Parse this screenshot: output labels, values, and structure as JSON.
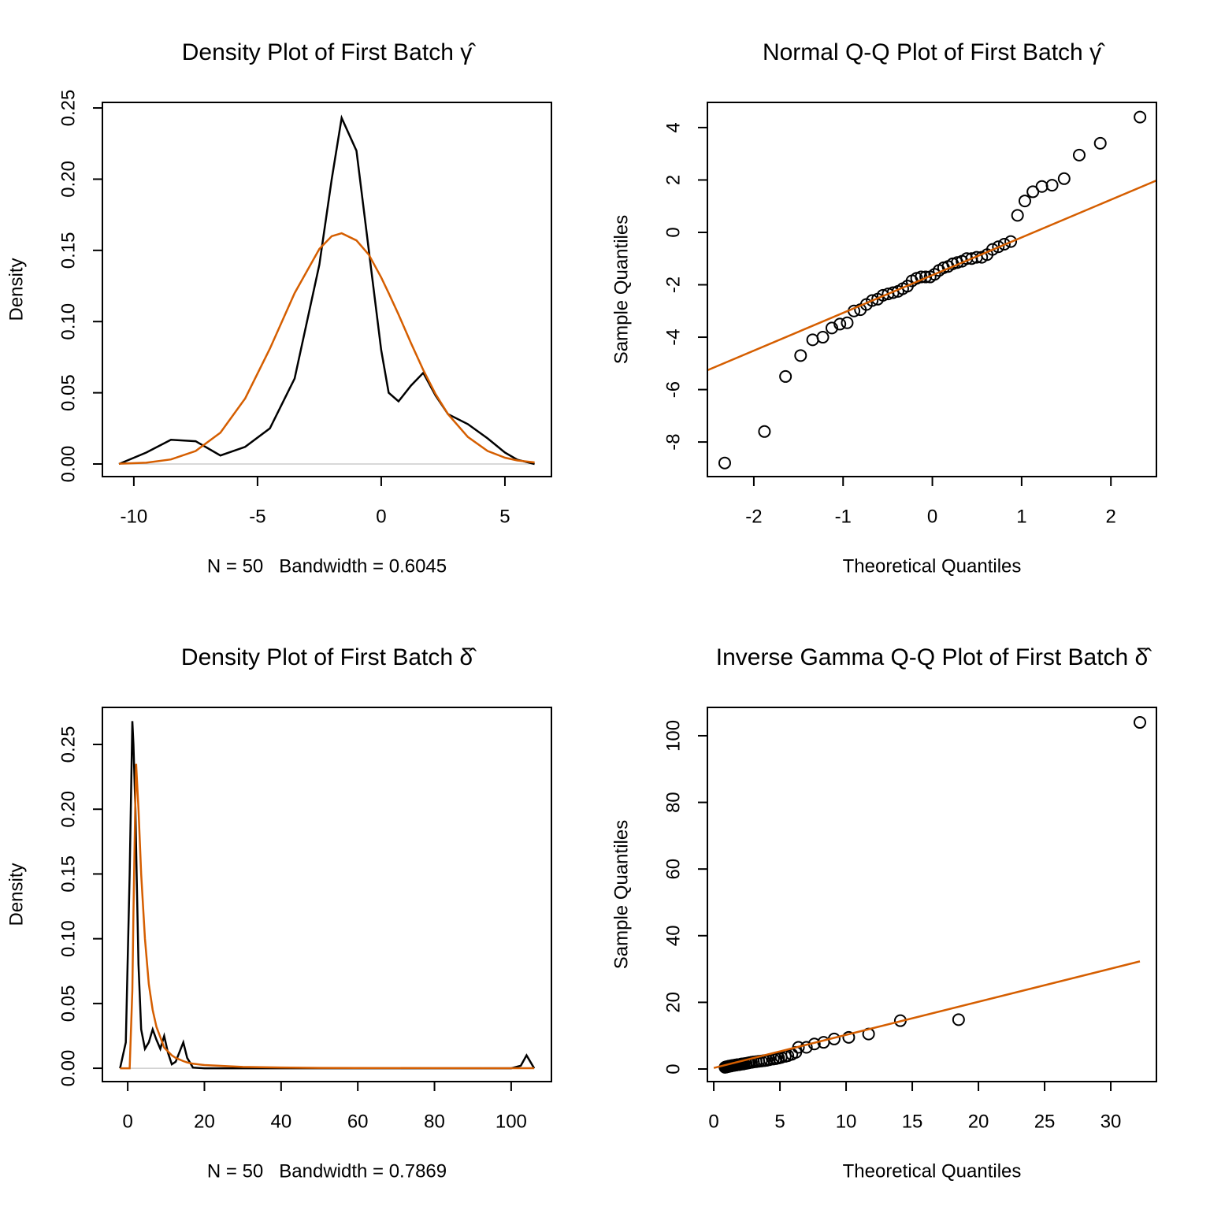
{
  "chart_data": [
    {
      "type": "line",
      "title": "Density Plot of First Batch γ̂",
      "xlabel": "N = 50   Bandwidth = 0.6045",
      "ylabel": "Density",
      "x": [
        -10.6,
        -9.5,
        -8.5,
        -7.5,
        -6.5,
        -5.5,
        -4.5,
        -3.5,
        -2.5,
        -2,
        -1.6,
        -1,
        -0.5,
        0,
        0.3,
        0.7,
        1.2,
        1.7,
        2.2,
        2.7,
        3.5,
        4.3,
        5,
        5.5,
        6.2
      ],
      "series": [
        {
          "color": "#000000",
          "values": [
            0,
            0.008,
            0.017,
            0.016,
            0.006,
            0.012,
            0.025,
            0.06,
            0.14,
            0.2,
            0.243,
            0.22,
            0.15,
            0.08,
            0.05,
            0.044,
            0.055,
            0.064,
            0.048,
            0.035,
            0.028,
            0.018,
            0.008,
            0.003,
            0
          ]
        },
        {
          "color": "#d55e00",
          "values": [
            0.0002,
            0.0009,
            0.0032,
            0.0091,
            0.022,
            0.046,
            0.081,
            0.12,
            0.151,
            0.16,
            0.162,
            0.157,
            0.147,
            0.131,
            0.12,
            0.105,
            0.085,
            0.066,
            0.049,
            0.035,
            0.019,
            0.0091,
            0.0044,
            0.0025,
            0.0011
          ]
        }
      ],
      "xlim": [
        -11.27,
        6.88
      ],
      "ylim": [
        -0.00885,
        0.2539
      ],
      "xticks": [
        -10,
        -5,
        0,
        5
      ],
      "yticks": [
        {
          "value": 0,
          "label": "0.00"
        },
        0.05,
        {
          "value": 0.1,
          "label": "0.10"
        },
        0.15,
        {
          "value": 0.2,
          "label": "0.20"
        },
        0.25
      ]
    },
    {
      "type": "scatter",
      "title": "Normal Q-Q Plot of First Batch γ̂",
      "xlabel": "Theoretical Quantiles",
      "ylabel": "Sample Quantiles",
      "x": [
        -2.326,
        -1.881,
        -1.645,
        -1.476,
        -1.341,
        -1.227,
        -1.126,
        -1.036,
        -0.954,
        -0.878,
        -0.806,
        -0.739,
        -0.674,
        -0.613,
        -0.553,
        -0.496,
        -0.44,
        -0.385,
        -0.332,
        -0.279,
        -0.228,
        -0.176,
        -0.126,
        -0.075,
        -0.025,
        0.025,
        0.075,
        0.126,
        0.176,
        0.228,
        0.279,
        0.332,
        0.385,
        0.44,
        0.496,
        0.553,
        0.613,
        0.674,
        0.739,
        0.806,
        0.878,
        0.954,
        1.036,
        1.126,
        1.227,
        1.341,
        1.476,
        1.645,
        1.881,
        2.326
      ],
      "values": [
        -8.8,
        -7.6,
        -5.5,
        -4.7,
        -4.1,
        -4.0,
        -3.65,
        -3.5,
        -3.45,
        -3.0,
        -2.95,
        -2.75,
        -2.6,
        -2.55,
        -2.4,
        -2.35,
        -2.3,
        -2.25,
        -2.15,
        -2.05,
        -1.85,
        -1.75,
        -1.7,
        -1.7,
        -1.7,
        -1.6,
        -1.45,
        -1.35,
        -1.3,
        -1.2,
        -1.15,
        -1.1,
        -1.0,
        -1.0,
        -0.95,
        -0.95,
        -0.85,
        -0.65,
        -0.55,
        -0.45,
        -0.35,
        0.65,
        1.2,
        1.55,
        1.75,
        1.8,
        2.05,
        2.95,
        3.4,
        4.4
      ],
      "point_color": "#000000",
      "reference_line": {
        "x": [
          -2.52,
          2.51
        ],
        "y": [
          -5.26,
          1.98
        ],
        "color": "#d55e00"
      },
      "xlim": [
        -2.52,
        2.51
      ],
      "ylim": [
        -9.32,
        4.96
      ],
      "xticks": [
        -2,
        -1,
        0,
        1,
        2
      ],
      "yticks": [
        -8,
        -6,
        -4,
        -2,
        0,
        2,
        4
      ]
    },
    {
      "type": "line",
      "title": "Density Plot of First Batch δ̂",
      "xlabel": "N = 50   Bandwidth = 0.7869",
      "ylabel": "Density",
      "x": [
        -2,
        -0.5,
        0.5,
        1.2,
        1.5,
        2,
        2.2,
        2.8,
        3.5,
        4.5,
        5.5,
        6.5,
        7.5,
        8.5,
        9.5,
        10.5,
        11.5,
        12.5,
        14.5,
        15.5,
        17,
        20,
        30,
        40,
        50,
        60,
        80,
        100,
        102.5,
        104,
        105,
        106
      ],
      "series": [
        {
          "color": "#000000",
          "values": [
            0,
            0.02,
            0.15,
            0.268,
            0.25,
            0.2,
            0.17,
            0.08,
            0.03,
            0.015,
            0.02,
            0.03,
            0.022,
            0.015,
            0.025,
            0.012,
            0.003,
            0.005,
            0.02,
            0.008,
            0.0005,
            0,
            0,
            0,
            0,
            0,
            0,
            0,
            0.002,
            0.01,
            0.005,
            0
          ]
        },
        {
          "color": "#d55e00",
          "values": [
            0,
            0,
            0,
            0.06,
            0.12,
            0.21,
            0.235,
            0.2,
            0.15,
            0.1,
            0.065,
            0.045,
            0.032,
            0.024,
            0.016,
            0.013,
            0.01,
            0.008,
            0.0055,
            0.0045,
            0.0035,
            0.0025,
            0.001,
            0.0006,
            0.0003,
            0.0002,
            0.0001,
            6e-05,
            5e-05,
            5e-05,
            5e-05,
            5e-05
          ]
        }
      ],
      "xlim": [
        -6.6,
        110.5
      ],
      "ylim": [
        -0.0103,
        0.2786
      ],
      "xticks": [
        0,
        20,
        40,
        60,
        80,
        100
      ],
      "yticks": [
        {
          "value": 0,
          "label": "0.00"
        },
        0.05,
        {
          "value": 0.1,
          "label": "0.10"
        },
        0.15,
        {
          "value": 0.2,
          "label": "0.20"
        },
        0.25
      ]
    },
    {
      "type": "scatter",
      "title": "Inverse Gamma Q-Q Plot of First Batch δ̂",
      "xlabel": "Theoretical Quantiles",
      "ylabel": "Sample Quantiles",
      "x": [
        0.85,
        0.9,
        0.95,
        1.0,
        1.05,
        1.1,
        1.15,
        1.2,
        1.3,
        1.35,
        1.4,
        1.5,
        1.55,
        1.65,
        1.7,
        1.8,
        1.9,
        2.0,
        2.1,
        2.2,
        2.3,
        2.45,
        2.6,
        2.7,
        2.85,
        3.0,
        3.2,
        3.4,
        3.6,
        3.8,
        4.0,
        4.2,
        4.5,
        4.7,
        4.9,
        5.1,
        5.4,
        5.6,
        5.9,
        6.2,
        6.4,
        7.0,
        7.6,
        8.3,
        9.1,
        10.2,
        11.7,
        14.1,
        18.5,
        32.2
      ],
      "values": [
        0.5,
        0.6,
        0.6,
        0.7,
        0.7,
        0.8,
        0.8,
        0.9,
        0.9,
        1.0,
        1.0,
        1.1,
        1.1,
        1.2,
        1.2,
        1.3,
        1.3,
        1.4,
        1.5,
        1.5,
        1.6,
        1.7,
        1.8,
        1.9,
        2.0,
        2.1,
        2.2,
        2.3,
        2.4,
        2.5,
        2.6,
        2.8,
        3.0,
        3.1,
        3.3,
        3.5,
        3.8,
        4.0,
        4.4,
        5.0,
        6.5,
        6.5,
        7.5,
        8,
        9,
        9.5,
        10.5,
        14.5,
        14.8,
        104
      ],
      "point_color": "#000000",
      "reference_line": {
        "x": [
          0,
          32.2
        ],
        "y": [
          0.3,
          32.3
        ],
        "color": "#d55e00"
      },
      "xlim": [
        -0.48,
        33.45
      ],
      "ylim": [
        -3.78,
        108.5
      ],
      "xticks": [
        0,
        5,
        10,
        15,
        20,
        25,
        30
      ],
      "yticks": [
        0,
        20,
        40,
        60,
        80,
        100
      ]
    }
  ]
}
